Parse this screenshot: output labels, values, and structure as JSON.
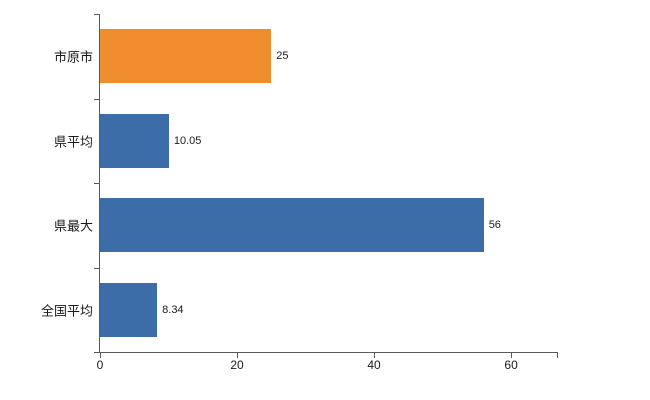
{
  "chart_data": {
    "type": "bar",
    "orientation": "horizontal",
    "title": "",
    "xlabel": "",
    "ylabel": "",
    "categories": [
      "市原市",
      "県平均",
      "県最大",
      "全国平均"
    ],
    "values": [
      25,
      10.05,
      56,
      8.34
    ],
    "value_labels": [
      "25",
      "10.05",
      "56",
      "8.34"
    ],
    "bar_colors": [
      "#ef8c2d",
      "#3d6da8",
      "#3d6da8",
      "#3d6da8"
    ],
    "x_tick_labels": [
      "0",
      "20",
      "40",
      "60"
    ],
    "x_tick_values": [
      0,
      20,
      40,
      60
    ],
    "xlim": [
      0,
      66.7
    ],
    "grid": false,
    "legend_position": "none",
    "axis_color": "#595959"
  }
}
